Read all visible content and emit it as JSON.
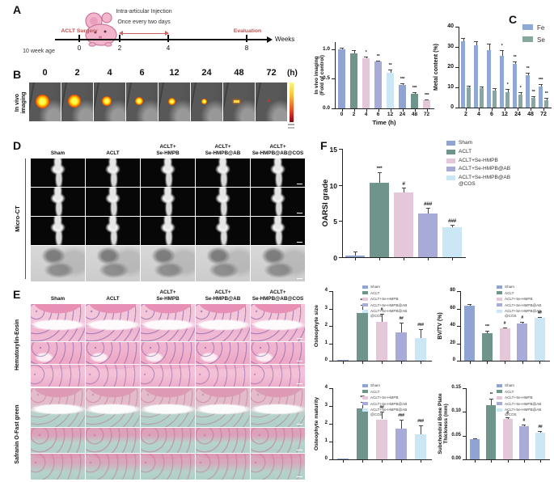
{
  "panels": {
    "a": "A",
    "b": "B",
    "c": "C",
    "d": "D",
    "e": "E",
    "f": "F"
  },
  "timeline": {
    "age_label": "10 week age",
    "surgery_label": "ACLT Surgery",
    "injection_line1": "Intra-articular Injection",
    "injection_line2": "Once every two days",
    "evaluation_label": "Evaluation",
    "axis_label": "Weeks",
    "ticks": [
      "0",
      "2",
      "4",
      "8"
    ],
    "accent_color": "#c0504d"
  },
  "invivo": {
    "row_label": "In vivo imaging",
    "unit_label": "(h)",
    "frames": [
      {
        "t": "0",
        "spot": 17
      },
      {
        "t": "2",
        "spot": 16
      },
      {
        "t": "4",
        "spot": 12
      },
      {
        "t": "6",
        "spot": 10
      },
      {
        "t": "12",
        "spot": 9
      },
      {
        "t": "24",
        "spot": 7
      },
      {
        "t": "48",
        "spot": 0,
        "dash": true
      },
      {
        "t": "72",
        "spot": 0,
        "dot": true
      }
    ]
  },
  "groups": {
    "columns": [
      {
        "l1": "",
        "l2": "Sham"
      },
      {
        "l1": "",
        "l2": "ACLT"
      },
      {
        "l1": "ACLT+",
        "l2": "Se-HMPB"
      },
      {
        "l1": "ACLT+",
        "l2": "Se-HMPB@AB"
      },
      {
        "l1": "ACLT+",
        "l2": "Se-HMPB@AB@COS"
      }
    ]
  },
  "legend_groups": {
    "labels": [
      "Sham",
      "ACLT",
      "ACLT+Se-HMPB",
      "ACLT+Se-HMPB@AB",
      "ACLT+Se-HMPB@AB\n@COS"
    ],
    "colors": [
      "#8fa4d2",
      "#6e948b",
      "#e4c8da",
      "#a8abd7",
      "#cbe6f5"
    ]
  },
  "microct": {
    "row_label": "Micro-CT"
  },
  "histology": {
    "he_label": "Hematoxylin-Eosin",
    "sf_label": "Safranin O-Fast green"
  },
  "colors": {
    "sham": "#8fa4d2",
    "aclt": "#6e948b",
    "se_hmpb": "#e4c8da",
    "ab": "#a8abd7",
    "cos": "#cbe6f5",
    "fe": "#8fa8d4",
    "se": "#87a89e",
    "accent_red": "#c0504d"
  },
  "chart_data": [
    {
      "key": "invivo_imaging",
      "type": "bar",
      "ylabel": "In vivo imaging",
      "ylabel2": "(Fold of control)",
      "xlabel": "Time (h)",
      "ylim": [
        0,
        1.12
      ],
      "yticks": [
        "0.0",
        "0.5",
        "1.0"
      ],
      "xticklabels": [
        "0",
        "2",
        "4",
        "6",
        "12",
        "24",
        "48",
        "72"
      ],
      "values": [
        1.0,
        0.93,
        0.85,
        0.79,
        0.6,
        0.4,
        0.24,
        0.13
      ],
      "errors": [
        0.03,
        0.05,
        0.03,
        0.02,
        0.06,
        0.02,
        0.04,
        0.02
      ],
      "sig": [
        "",
        "",
        "*",
        "**",
        "**",
        "***",
        "***",
        "***"
      ],
      "colors": [
        "#8fa4d2",
        "#6e948b",
        "#e4c8da",
        "#a8abd7",
        "#cbe6f5",
        "#8fa4d2",
        "#6e948b",
        "#e4c8da"
      ]
    },
    {
      "key": "metal_content",
      "type": "grouped-bar",
      "ylabel": "Metal content (%)",
      "ylim": [
        0,
        40
      ],
      "yticks": [
        "0",
        "10",
        "20",
        "30",
        "40"
      ],
      "categories": [
        "2",
        "4",
        "6",
        "12",
        "24",
        "48",
        "72"
      ],
      "series": [
        {
          "name": "Fe",
          "color": "#8fa8d4",
          "values": [
            33,
            31,
            28.5,
            25.5,
            21.5,
            16,
            10.5
          ],
          "errors": [
            1.5,
            2,
            3,
            3,
            1.5,
            1.2,
            1
          ],
          "sig": [
            "",
            "",
            "",
            "*",
            "**",
            "**",
            "***"
          ]
        },
        {
          "name": "Se",
          "color": "#87a89e",
          "values": [
            10,
            9.5,
            8.5,
            7.8,
            6.5,
            5,
            3.5
          ],
          "errors": [
            0.8,
            1,
            1.2,
            1.5,
            1,
            0.8,
            1.2
          ],
          "sig": [
            "",
            "",
            "",
            "*",
            "*",
            "**",
            "**"
          ]
        }
      ]
    },
    {
      "key": "oarsi_grade",
      "type": "bar",
      "ylabel": "OARSI grade",
      "ylim": [
        0,
        15
      ],
      "yticks": [
        "0",
        "5",
        "10",
        "15"
      ],
      "values": [
        0.25,
        10.3,
        8.9,
        6.0,
        4.1
      ],
      "errors": [
        0.5,
        1.4,
        0.7,
        0.8,
        0.35
      ],
      "sig": [
        "",
        "***",
        "#",
        "###",
        "###"
      ],
      "colors": [
        "#8fa4d2",
        "#6e948b",
        "#e4c8da",
        "#a8abd7",
        "#cbe6f5"
      ]
    },
    {
      "key": "osteophyte_size",
      "type": "bar",
      "ylabel": "Osteophyte size",
      "ylim": [
        0,
        4
      ],
      "yticks": [
        "0",
        "1",
        "2",
        "3",
        "4"
      ],
      "values": [
        0.03,
        2.75,
        2.25,
        1.62,
        1.3
      ],
      "errors": [
        0,
        0.45,
        0.45,
        0.55,
        0.5
      ],
      "sig": [
        "",
        "***",
        "#",
        "##",
        "###"
      ],
      "colors": [
        "#8fa4d2",
        "#6e948b",
        "#e4c8da",
        "#a8abd7",
        "#cbe6f5"
      ]
    },
    {
      "key": "bvtv",
      "type": "bar",
      "ylabel": "BV/TV (%)",
      "ylim": [
        0,
        80
      ],
      "yticks": [
        "0",
        "20",
        "40",
        "60",
        "80"
      ],
      "values": [
        63,
        32,
        37,
        43,
        49
      ],
      "errors": [
        2,
        2.5,
        1.5,
        1.8,
        1.5
      ],
      "sig": [
        "",
        "***",
        "#",
        "#",
        "##"
      ],
      "colors": [
        "#8fa4d2",
        "#6e948b",
        "#e4c8da",
        "#a8abd7",
        "#cbe6f5"
      ]
    },
    {
      "key": "osteophyte_maturity",
      "type": "bar",
      "ylabel": "Osteophyte maturity",
      "ylim": [
        0,
        4
      ],
      "yticks": [
        "0",
        "1",
        "2",
        "3",
        "4"
      ],
      "values": [
        0.03,
        2.87,
        2.25,
        1.75,
        1.4
      ],
      "errors": [
        0,
        0.35,
        0.45,
        0.5,
        0.5
      ],
      "sig": [
        "",
        "***",
        "##",
        "###",
        "###"
      ],
      "colors": [
        "#8fa4d2",
        "#6e948b",
        "#e4c8da",
        "#a8abd7",
        "#cbe6f5"
      ]
    },
    {
      "key": "sbp_thickness",
      "type": "bar",
      "ylabel": "Subchondral Bone Plate",
      "ylabel2": "Thickness (mm)",
      "ylim": [
        0,
        0.15
      ],
      "yticks": [
        "0.00",
        "0.05",
        "0.10",
        "0.15"
      ],
      "values": [
        0.042,
        0.115,
        0.085,
        0.07,
        0.057
      ],
      "errors": [
        0.002,
        0.013,
        0.004,
        0.004,
        0.003
      ],
      "sig": [
        "",
        "**",
        "#",
        "#",
        "##"
      ],
      "colors": [
        "#8fa4d2",
        "#6e948b",
        "#e4c8da",
        "#a8abd7",
        "#cbe6f5"
      ]
    }
  ]
}
